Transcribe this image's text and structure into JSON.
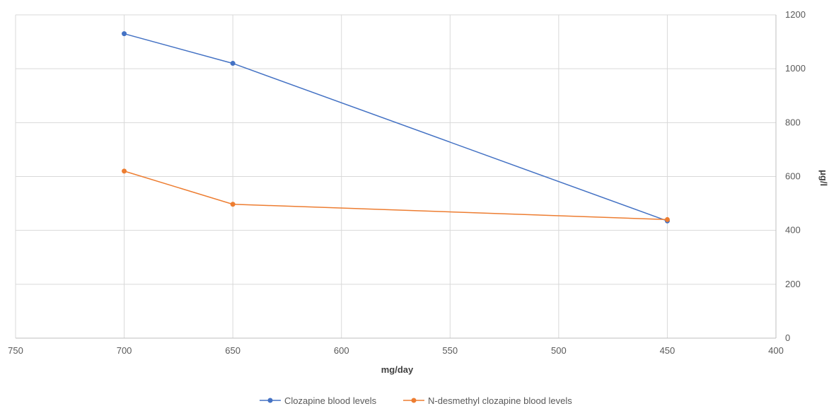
{
  "chart_data": {
    "type": "line",
    "title": "",
    "xlabel": "mg/day",
    "ylabel": "μg/l",
    "x_reversed": true,
    "xlim": [
      750,
      400
    ],
    "ylim": [
      0,
      1200
    ],
    "x_ticks": [
      750,
      700,
      650,
      600,
      550,
      500,
      450,
      400
    ],
    "y_ticks": [
      0,
      200,
      400,
      600,
      800,
      1000,
      1200
    ],
    "y_axis_position": "right",
    "grid": true,
    "legend_position": "bottom",
    "x": [
      700,
      650,
      450
    ],
    "series": [
      {
        "name": "Clozapine blood levels",
        "values": [
          1130,
          1020,
          435
        ],
        "color": "#4472C4"
      },
      {
        "name": "N-desmethyl clozapine blood levels",
        "values": [
          620,
          497,
          440
        ],
        "color": "#ED7D31"
      }
    ]
  }
}
